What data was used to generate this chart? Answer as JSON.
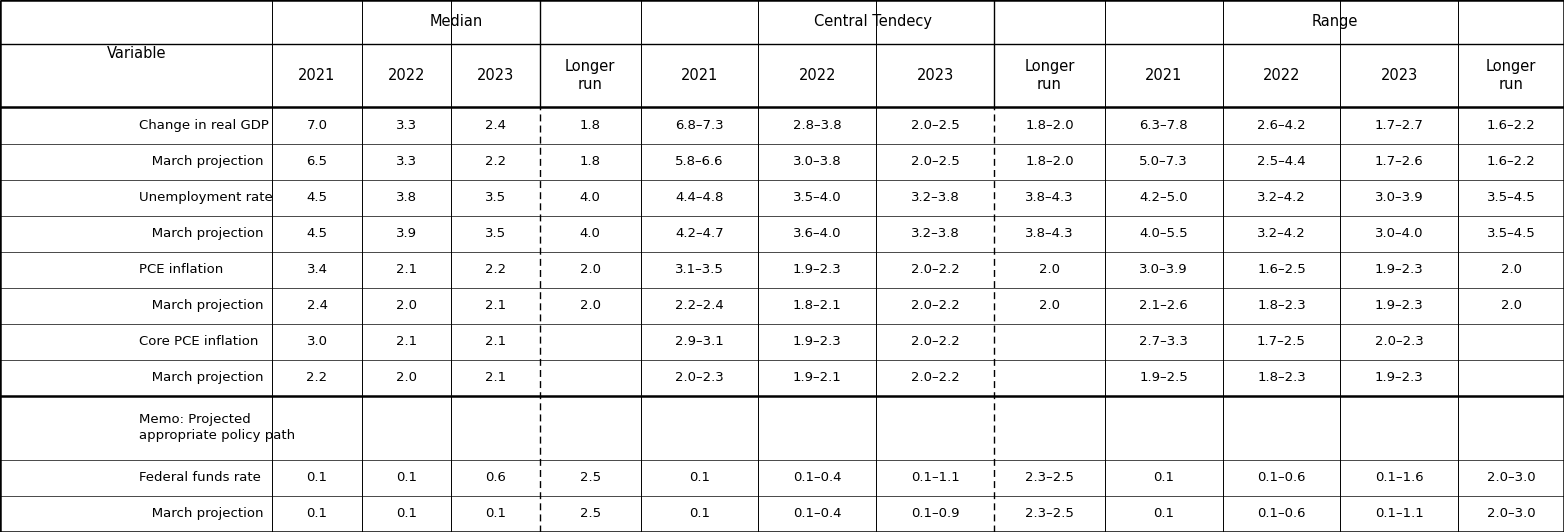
{
  "col_group_labels": [
    "Median",
    "Central Tendecy",
    "Range"
  ],
  "col_headers": [
    "Variable",
    "2021",
    "2022",
    "2023",
    "Longer\nrun",
    "2021",
    "2022",
    "2023",
    "Longer\nrun",
    "2021",
    "2022",
    "2023",
    "Longer\nrun"
  ],
  "rows": [
    [
      "Change in real GDP",
      "7.0",
      "3.3",
      "2.4",
      "1.8",
      "6.8–7.3",
      "2.8–3.8",
      "2.0–2.5",
      "1.8–2.0",
      "6.3–7.8",
      "2.6–4.2",
      "1.7–2.7",
      "1.6–2.2"
    ],
    [
      "   March projection",
      "6.5",
      "3.3",
      "2.2",
      "1.8",
      "5.8–6.6",
      "3.0–3.8",
      "2.0–2.5",
      "1.8–2.0",
      "5.0–7.3",
      "2.5–4.4",
      "1.7–2.6",
      "1.6–2.2"
    ],
    [
      "Unemployment rate",
      "4.5",
      "3.8",
      "3.5",
      "4.0",
      "4.4–4.8",
      "3.5–4.0",
      "3.2–3.8",
      "3.8–4.3",
      "4.2–5.0",
      "3.2–4.2",
      "3.0–3.9",
      "3.5–4.5"
    ],
    [
      "   March projection",
      "4.5",
      "3.9",
      "3.5",
      "4.0",
      "4.2–4.7",
      "3.6–4.0",
      "3.2–3.8",
      "3.8–4.3",
      "4.0–5.5",
      "3.2–4.2",
      "3.0–4.0",
      "3.5–4.5"
    ],
    [
      "PCE inflation",
      "3.4",
      "2.1",
      "2.2",
      "2.0",
      "3.1–3.5",
      "1.9–2.3",
      "2.0–2.2",
      "2.0",
      "3.0–3.9",
      "1.6–2.5",
      "1.9–2.3",
      "2.0"
    ],
    [
      "   March projection",
      "2.4",
      "2.0",
      "2.1",
      "2.0",
      "2.2–2.4",
      "1.8–2.1",
      "2.0–2.2",
      "2.0",
      "2.1–2.6",
      "1.8–2.3",
      "1.9–2.3",
      "2.0"
    ],
    [
      "Core PCE inflation",
      "3.0",
      "2.1",
      "2.1",
      "",
      "2.9–3.1",
      "1.9–2.3",
      "2.0–2.2",
      "",
      "2.7–3.3",
      "1.7–2.5",
      "2.0–2.3",
      ""
    ],
    [
      "   March projection",
      "2.2",
      "2.0",
      "2.1",
      "",
      "2.0–2.3",
      "1.9–2.1",
      "2.0–2.2",
      "",
      "1.9–2.5",
      "1.8–2.3",
      "1.9–2.3",
      ""
    ],
    [
      "Memo: Projected\nappropriate policy path",
      "",
      "",
      "",
      "",
      "",
      "",
      "",
      "",
      "",
      "",
      "",
      ""
    ],
    [
      "Federal funds rate",
      "0.1",
      "0.1",
      "0.6",
      "2.5",
      "0.1",
      "0.1–0.4",
      "0.1–1.1",
      "2.3–2.5",
      "0.1",
      "0.1–0.6",
      "0.1–1.6",
      "2.0–3.0"
    ],
    [
      "   March projection",
      "0.1",
      "0.1",
      "0.1",
      "2.5",
      "0.1",
      "0.1–0.4",
      "0.1–0.9",
      "2.3–2.5",
      "0.1",
      "0.1–0.6",
      "0.1–1.1",
      "2.0–3.0"
    ]
  ],
  "background_color": "#ffffff",
  "font_size": 9.5,
  "header_font_size": 10.5,
  "fig_width": 15.64,
  "fig_height": 5.32,
  "dpi": 100
}
